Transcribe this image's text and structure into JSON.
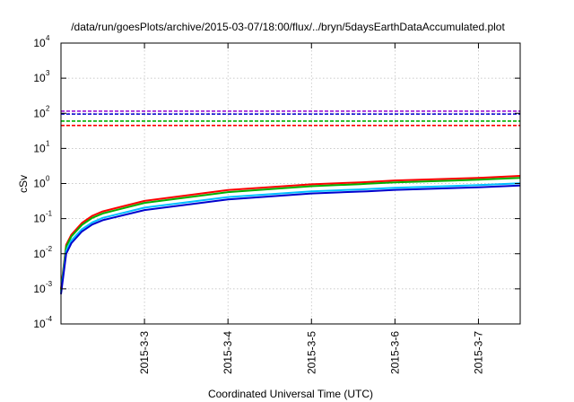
{
  "chart_data": {
    "type": "line",
    "title": "/data/run/goesPlots/archive/2015-03-07/18:00/flux/../bryn/5daysEarthDataAccumulated.plot",
    "xlabel": "Coordinated Universal Time (UTC)",
    "ylabel": "cSv",
    "x_scale": "time",
    "xlim": [
      "2015-03-02T00:00",
      "2015-03-07T12:00"
    ],
    "x_ticks": [
      {
        "label": "2015-3-3",
        "value": "2015-03-03T00:00"
      },
      {
        "label": "2015-3-4",
        "value": "2015-03-04T00:00"
      },
      {
        "label": "2015-3-5",
        "value": "2015-03-05T00:00"
      },
      {
        "label": "2015-3-6",
        "value": "2015-03-06T00:00"
      },
      {
        "label": "2015-3-7",
        "value": "2015-03-07T00:00"
      }
    ],
    "y_scale": "log",
    "ylim": [
      0.0001,
      10000
    ],
    "y_ticks": [
      {
        "base": "10",
        "exp": "-4",
        "value": 0.0001
      },
      {
        "base": "10",
        "exp": "-3",
        "value": 0.001
      },
      {
        "base": "10",
        "exp": "-2",
        "value": 0.01
      },
      {
        "base": "10",
        "exp": "-1",
        "value": 0.1
      },
      {
        "base": "10",
        "exp": "0",
        "value": 1
      },
      {
        "base": "10",
        "exp": "1",
        "value": 10
      },
      {
        "base": "10",
        "exp": "2",
        "value": 100
      },
      {
        "base": "10",
        "exp": "3",
        "value": 1000
      },
      {
        "base": "10",
        "exp": "4",
        "value": 10000
      }
    ],
    "grid": true,
    "reference_lines": [
      {
        "y": 115,
        "color": "#9400d3",
        "style": "dashed"
      },
      {
        "y": 95,
        "color": "#0000cd",
        "style": "dashed"
      },
      {
        "y": 60,
        "color": "#00b000",
        "style": "dashed"
      },
      {
        "y": 45,
        "color": "#ff0000",
        "style": "dashed"
      }
    ],
    "series": [
      {
        "color": "#ff0000",
        "x": [
          "2015-03-02T00:00",
          "2015-03-02T01:30",
          "2015-03-02T03:00",
          "2015-03-02T06:00",
          "2015-03-02T09:00",
          "2015-03-02T12:00",
          "2015-03-03T00:00",
          "2015-03-04T00:00",
          "2015-03-05T00:00",
          "2015-03-05T14:00",
          "2015-03-05T16:00",
          "2015-03-06T00:00",
          "2015-03-07T00:00",
          "2015-03-07T12:00"
        ],
        "y": [
          0.001,
          0.018,
          0.035,
          0.075,
          0.12,
          0.16,
          0.32,
          0.65,
          0.95,
          1.08,
          1.1,
          1.22,
          1.45,
          1.65
        ]
      },
      {
        "color": "#00b000",
        "x": [
          "2015-03-02T00:00",
          "2015-03-02T01:30",
          "2015-03-02T03:00",
          "2015-03-02T06:00",
          "2015-03-02T09:00",
          "2015-03-02T12:00",
          "2015-03-03T00:00",
          "2015-03-04T00:00",
          "2015-03-05T00:00",
          "2015-03-05T14:00",
          "2015-03-05T16:00",
          "2015-03-06T00:00",
          "2015-03-07T00:00",
          "2015-03-07T12:00"
        ],
        "y": [
          0.0009,
          0.016,
          0.031,
          0.066,
          0.105,
          0.14,
          0.28,
          0.57,
          0.84,
          0.96,
          0.98,
          1.08,
          1.28,
          1.45
        ]
      },
      {
        "color": "#00bfff",
        "x": [
          "2015-03-02T00:00",
          "2015-03-02T01:30",
          "2015-03-02T03:00",
          "2015-03-02T06:00",
          "2015-03-02T09:00",
          "2015-03-02T12:00",
          "2015-03-03T00:00",
          "2015-03-04T00:00",
          "2015-03-05T00:00",
          "2015-03-05T14:00",
          "2015-03-05T16:00",
          "2015-03-06T00:00",
          "2015-03-07T00:00",
          "2015-03-07T12:00"
        ],
        "y": [
          0.0008,
          0.012,
          0.024,
          0.05,
          0.078,
          0.105,
          0.205,
          0.41,
          0.6,
          0.68,
          0.69,
          0.76,
          0.9,
          1.02
        ]
      },
      {
        "color": "#0000cd",
        "x": [
          "2015-03-02T00:00",
          "2015-03-02T01:30",
          "2015-03-02T03:00",
          "2015-03-02T06:00",
          "2015-03-02T09:00",
          "2015-03-02T12:00",
          "2015-03-03T00:00",
          "2015-03-04T00:00",
          "2015-03-05T00:00",
          "2015-03-05T14:00",
          "2015-03-05T16:00",
          "2015-03-06T00:00",
          "2015-03-07T00:00",
          "2015-03-07T12:00"
        ],
        "y": [
          0.0007,
          0.01,
          0.02,
          0.043,
          0.068,
          0.09,
          0.175,
          0.35,
          0.52,
          0.59,
          0.6,
          0.66,
          0.78,
          0.88
        ]
      }
    ]
  }
}
